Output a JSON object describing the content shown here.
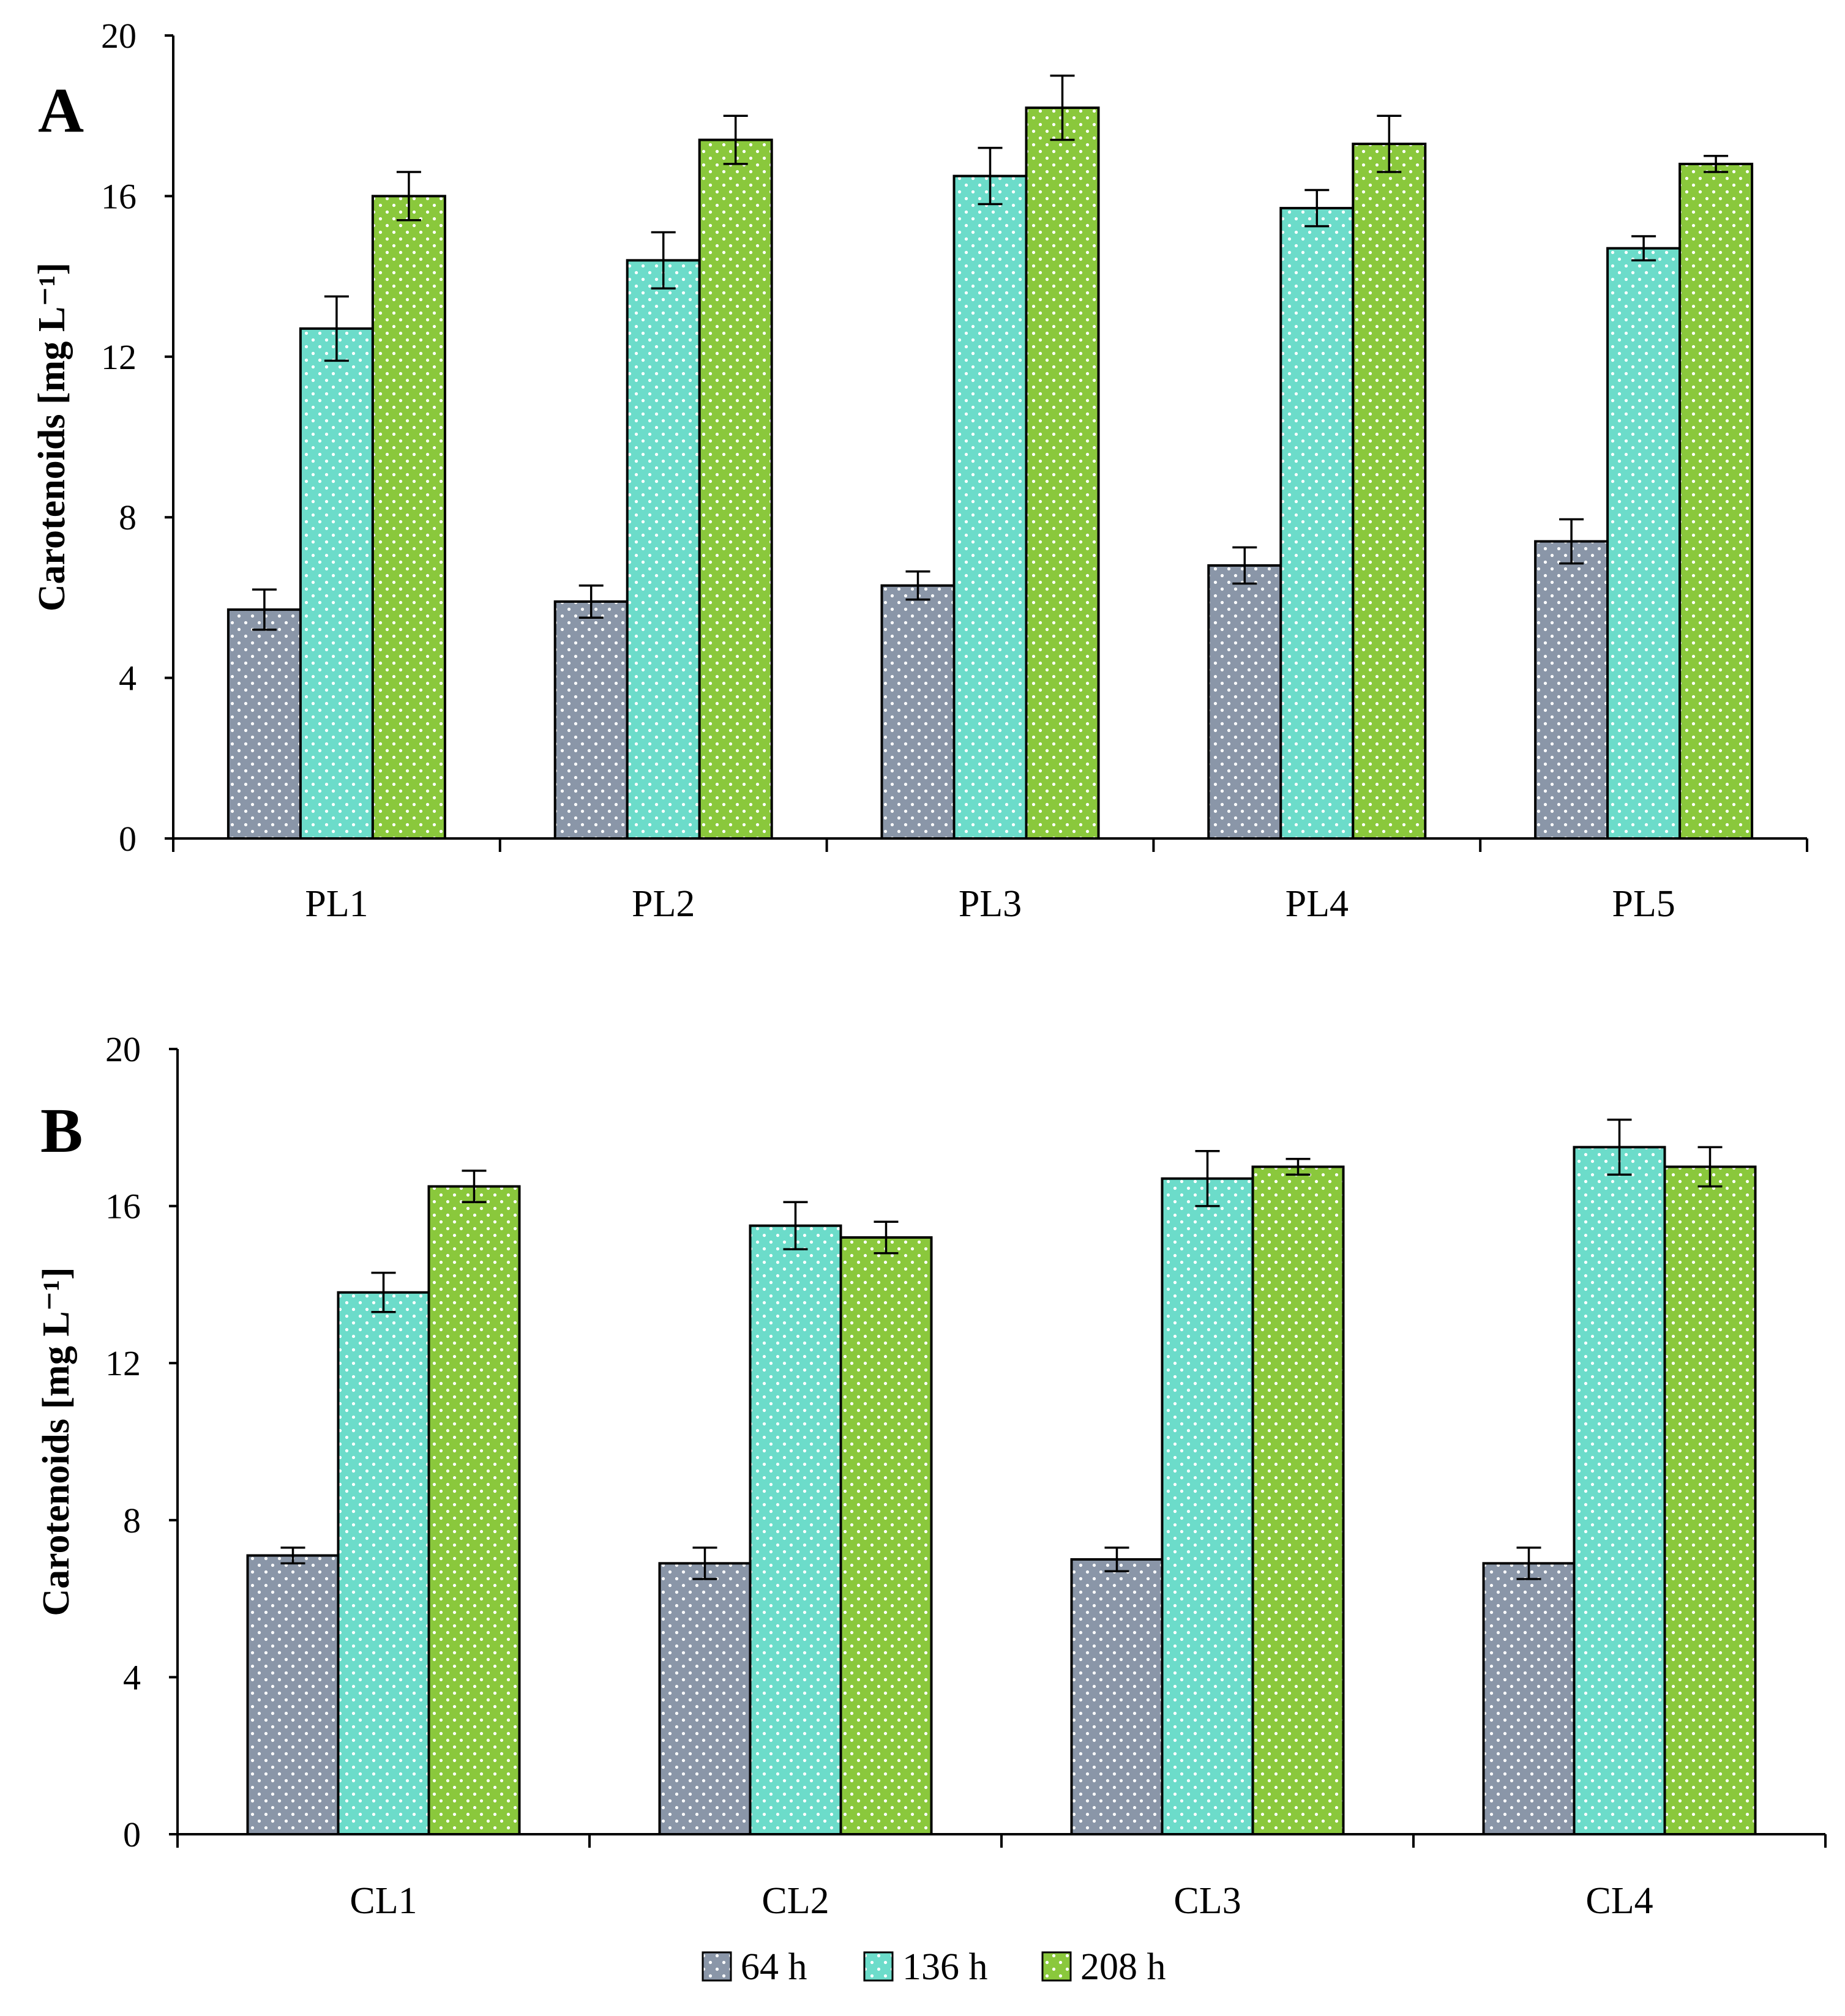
{
  "legend": [
    {
      "name": "64 h",
      "color": "#8a96a8"
    },
    {
      "name": "136 h",
      "color": "#6cdcca"
    },
    {
      "name": "208 h",
      "color": "#8ac83c"
    }
  ],
  "chart_data": [
    {
      "type": "bar",
      "panel": "A",
      "ylabel": "Carotenoids [mg L⁻¹]",
      "ylim": [
        0,
        20
      ],
      "yticks": [
        0,
        4,
        8,
        12,
        16,
        20
      ],
      "categories": [
        "PL1",
        "PL2",
        "PL3",
        "PL4",
        "PL5"
      ],
      "series": [
        {
          "name": "64 h",
          "values": [
            5.7,
            5.9,
            6.3,
            6.8,
            7.4
          ],
          "errors": [
            0.5,
            0.4,
            0.35,
            0.45,
            0.55
          ]
        },
        {
          "name": "136 h",
          "values": [
            12.7,
            14.4,
            16.5,
            15.7,
            14.7
          ],
          "errors": [
            0.8,
            0.7,
            0.7,
            0.45,
            0.3
          ]
        },
        {
          "name": "208 h",
          "values": [
            16.0,
            17.4,
            18.2,
            17.3,
            16.8
          ],
          "errors": [
            0.6,
            0.6,
            0.8,
            0.7,
            0.2
          ]
        }
      ]
    },
    {
      "type": "bar",
      "panel": "B",
      "ylabel": "Carotenoids [mg L⁻¹]",
      "ylim": [
        0,
        20
      ],
      "yticks": [
        0,
        4,
        8,
        12,
        16,
        20
      ],
      "categories": [
        "CL1",
        "CL2",
        "CL3",
        "CL4"
      ],
      "series": [
        {
          "name": "64 h",
          "values": [
            7.1,
            6.9,
            7.0,
            6.9
          ],
          "errors": [
            0.2,
            0.4,
            0.3,
            0.4
          ]
        },
        {
          "name": "136 h",
          "values": [
            13.8,
            15.5,
            16.7,
            17.5
          ],
          "errors": [
            0.5,
            0.6,
            0.7,
            0.7
          ]
        },
        {
          "name": "208 h",
          "values": [
            16.5,
            15.2,
            17.0,
            17.0
          ],
          "errors": [
            0.4,
            0.4,
            0.2,
            0.5
          ]
        }
      ]
    }
  ]
}
